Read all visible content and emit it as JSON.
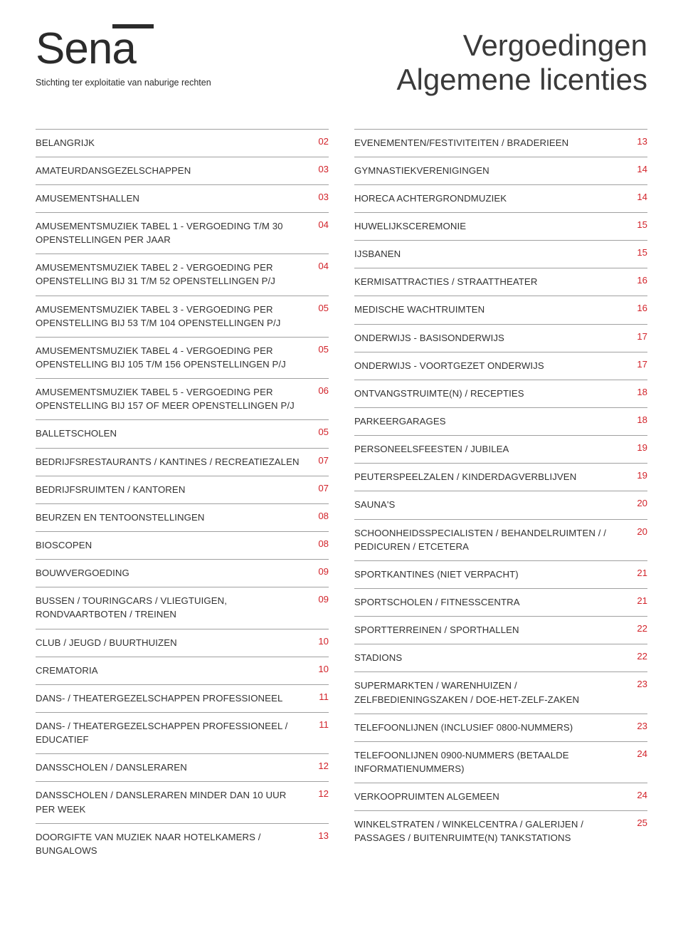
{
  "logo": {
    "text": "Sena",
    "subtitle": "Stichting ter exploitatie van naburige rechten"
  },
  "title": {
    "line1": "Vergoedingen",
    "line2": "Algemene licenties"
  },
  "accent_color": "#d2232a",
  "text_color": "#323232",
  "divider_color": "#a0a0a0",
  "left": [
    {
      "label": "BELANGRIJK",
      "page": "02"
    },
    {
      "label": "AMATEURDANSGEZELSCHAPPEN",
      "page": "03"
    },
    {
      "label": "AMUSEMENTSHALLEN",
      "page": "03"
    },
    {
      "label": "AMUSEMENTSMUZIEK TABEL 1 - VERGOEDING T/M 30 OPENSTELLINGEN PER JAAR",
      "page": "04"
    },
    {
      "label": "AMUSEMENTSMUZIEK TABEL 2 - VERGOEDING PER OPENSTELLING BIJ 31 T/M 52 OPENSTELLINGEN P/J",
      "page": "04"
    },
    {
      "label": "AMUSEMENTSMUZIEK TABEL 3 - VERGOEDING PER OPENSTELLING BIJ 53 T/M 104 OPENSTELLINGEN P/J",
      "page": "05"
    },
    {
      "label": "AMUSEMENTSMUZIEK TABEL 4 - VERGOEDING PER OPENSTELLING BIJ 105 T/M 156 OPENSTELLINGEN P/J",
      "page": "05"
    },
    {
      "label": "AMUSEMENTSMUZIEK TABEL 5 - VERGOEDING PER OPENSTELLING BIJ 157 OF MEER OPENSTELLINGEN P/J",
      "page": "06"
    },
    {
      "label": "BALLETSCHOLEN",
      "page": "05"
    },
    {
      "label": "BEDRIJFSRESTAURANTS / KANTINES / RECREATIEZALEN",
      "page": "07"
    },
    {
      "label": "BEDRIJFSRUIMTEN / KANTOREN",
      "page": "07"
    },
    {
      "label": "BEURZEN EN TENTOONSTELLINGEN",
      "page": "08"
    },
    {
      "label": "BIOSCOPEN",
      "page": "08"
    },
    {
      "label": "BOUWVERGOEDING",
      "page": "09"
    },
    {
      "label": "BUSSEN / TOURINGCARS / VLIEGTUIGEN, RONDVAARTBOTEN / TREINEN",
      "page": "09"
    },
    {
      "label": "CLUB / JEUGD / BUURTHUIZEN",
      "page": "10"
    },
    {
      "label": "CREMATORIA",
      "page": "10"
    },
    {
      "label": "DANS- / THEATERGEZELSCHAPPEN PROFESSIONEEL",
      "page": "11"
    },
    {
      "label": "DANS- / THEATERGEZELSCHAPPEN PROFESSIONEEL / EDUCATIEF",
      "page": "11"
    },
    {
      "label": "DANSSCHOLEN / DANSLERAREN",
      "page": "12"
    },
    {
      "label": "DANSSCHOLEN / DANSLERAREN MINDER DAN 10 UUR PER WEEK",
      "page": "12"
    },
    {
      "label": "DOORGIFTE VAN MUZIEK NAAR HOTELKAMERS / BUNGALOWS",
      "page": "13"
    }
  ],
  "right": [
    {
      "label": "EVENEMENTEN/FESTIVITEITEN / BRADERIEEN",
      "page": "13"
    },
    {
      "label": "GYMNASTIEKVERENIGINGEN",
      "page": "14"
    },
    {
      "label": "HORECA ACHTERGRONDMUZIEK",
      "page": "14"
    },
    {
      "label": "HUWELIJKSCEREMONIE",
      "page": "15"
    },
    {
      "label": "IJSBANEN",
      "page": "15"
    },
    {
      "label": "KERMISATTRACTIES / STRAATTHEATER",
      "page": "16"
    },
    {
      "label": "MEDISCHE WACHTRUIMTEN",
      "page": "16"
    },
    {
      "label": "ONDERWIJS - BASISONDERWIJS",
      "page": "17"
    },
    {
      "label": "ONDERWIJS - VOORTGEZET ONDERWIJS",
      "page": "17"
    },
    {
      "label": "ONTVANGSTRUIMTE(N) / RECEPTIES",
      "page": "18"
    },
    {
      "label": "PARKEERGARAGES",
      "page": "18"
    },
    {
      "label": "PERSONEELSFEESTEN / JUBILEA",
      "page": "19"
    },
    {
      "label": "PEUTERSPEELZALEN / KINDERDAGVERBLIJVEN",
      "page": "19"
    },
    {
      "label": "SAUNA'S",
      "page": "20"
    },
    {
      "label": "SCHOONHEIDSSPECIALISTEN / BEHANDELRUIMTEN / / PEDICUREN / ETCETERA",
      "page": "20"
    },
    {
      "label": "SPORTKANTINES (NIET VERPACHT)",
      "page": "21"
    },
    {
      "label": "SPORTSCHOLEN / FITNESSCENTRA",
      "page": "21"
    },
    {
      "label": "SPORTTERREINEN / SPORTHALLEN",
      "page": "22"
    },
    {
      "label": "STADIONS",
      "page": "22"
    },
    {
      "label": "SUPERMARKTEN / WARENHUIZEN / ZELFBEDIENINGSZAKEN / DOE-HET-ZELF-ZAKEN",
      "page": "23"
    },
    {
      "label": "TELEFOONLIJNEN (INCLUSIEF 0800-NUMMERS)",
      "page": "23"
    },
    {
      "label": "TELEFOONLIJNEN 0900-NUMMERS (BETAALDE INFORMATIENUMMERS)",
      "page": "24"
    },
    {
      "label": "VERKOOPRUIMTEN ALGEMEEN",
      "page": "24"
    },
    {
      "label": "WINKELSTRATEN / WINKELCENTRA / GALERIJEN / PASSAGES / BUITENRUIMTE(N) TANKSTATIONS",
      "page": "25"
    }
  ]
}
